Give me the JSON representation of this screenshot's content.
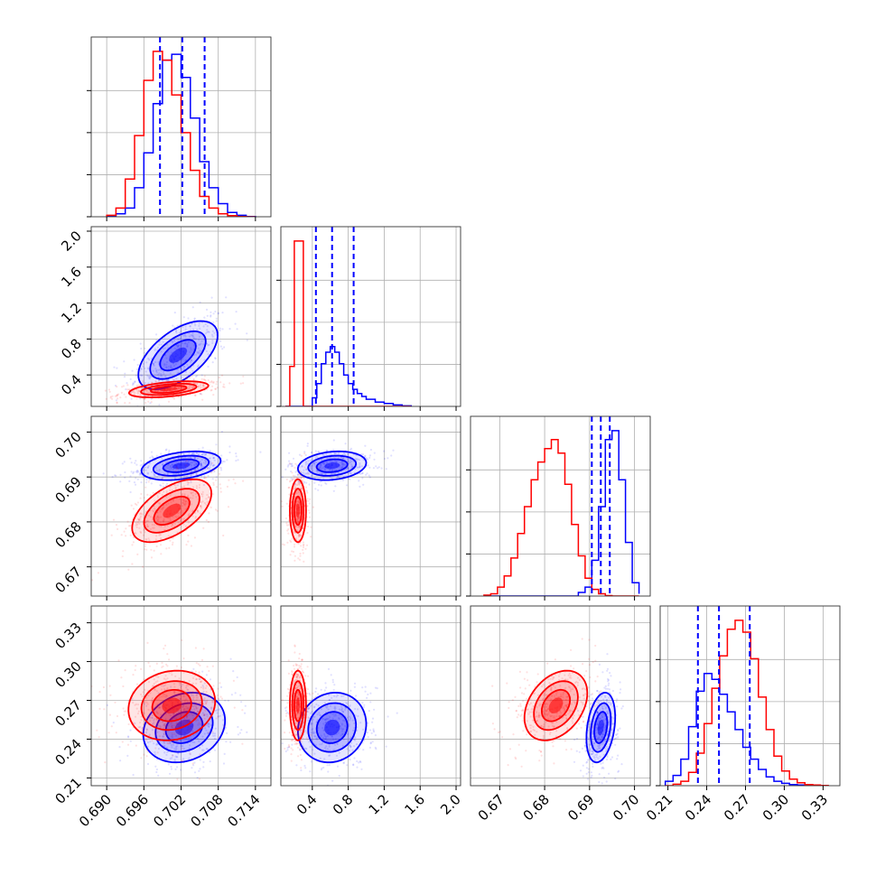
{
  "chart_data": {
    "type": "corner",
    "title": "",
    "grid": true,
    "colors": {
      "blue": "#0000ff",
      "red": "#ff0000",
      "grid": "#b0b0b0"
    },
    "parameters": [
      {
        "range": [
          0.6875,
          0.7165
        ],
        "ticks": [
          "0.690",
          "0.696",
          "0.702",
          "0.708",
          "0.714"
        ]
      },
      {
        "range": [
          0.05,
          2.05
        ],
        "ticks": [
          "0.4",
          "0.8",
          "1.2",
          "1.6",
          "2.0"
        ]
      },
      {
        "range": [
          0.6635,
          0.7035
        ],
        "ticks": [
          "0.67",
          "0.68",
          "0.69",
          "0.70"
        ]
      },
      {
        "range": [
          0.204,
          0.343
        ],
        "ticks": [
          "0.21",
          "0.24",
          "0.27",
          "0.30",
          "0.33"
        ]
      }
    ],
    "marginals": [
      {
        "bins": [
          0.69,
          0.6915,
          0.693,
          0.6945,
          0.696,
          0.6975,
          0.699,
          0.7005,
          0.702,
          0.7035,
          0.705,
          0.7065,
          0.708,
          0.7095,
          0.711,
          0.7125,
          0.714
        ],
        "series": [
          {
            "name": "",
            "color": "#0000ff",
            "counts": [
              0.02,
              0.1,
              0.3,
              1.0,
              2.2,
              3.9,
              5.4,
              5.6,
              4.8,
              3.4,
              1.9,
              1.0,
              0.45,
              0.15,
              0.05,
              0.01
            ]
          },
          {
            "name": "",
            "color": "#ff0000",
            "counts": [
              0.05,
              0.3,
              1.3,
              2.8,
              4.7,
              5.7,
              5.4,
              4.2,
              2.9,
              1.6,
              0.7,
              0.3,
              0.1,
              0.04,
              0.01,
              0.0
            ]
          }
        ],
        "quantiles": [
          0.6986,
          0.7022,
          0.7058
        ]
      },
      {
        "bins": [
          0.1,
          0.15,
          0.2,
          0.25,
          0.3,
          0.35,
          0.4,
          0.45,
          0.5,
          0.55,
          0.6,
          0.65,
          0.7,
          0.75,
          0.8,
          0.85,
          0.9,
          0.95,
          1.0,
          1.1,
          1.2,
          1.3,
          1.4,
          1.5
        ],
        "series": [
          {
            "name": "",
            "color": "#0000ff",
            "counts": [
              0.0,
              0.0,
              0.0,
              0.0,
              0.0,
              0.0,
              0.3,
              0.8,
              1.5,
              1.9,
              2.1,
              1.9,
              1.5,
              1.1,
              0.8,
              0.6,
              0.45,
              0.35,
              0.25,
              0.15,
              0.1,
              0.05,
              0.02
            ]
          },
          {
            "name": "",
            "color": "#ff0000",
            "counts": [
              0.0,
              1.4,
              5.8,
              5.8,
              0.0,
              0.0,
              0.0,
              0.0,
              0.0,
              0.0,
              0.0,
              0.0,
              0.0,
              0.0,
              0.0,
              0.0,
              0.0,
              0.0,
              0.0,
              0.0,
              0.0,
              0.0,
              0.0
            ]
          }
        ],
        "quantiles": [
          0.44,
          0.62,
          0.86
        ]
      },
      {
        "bins": [
          0.6665,
          0.668,
          0.6695,
          0.671,
          0.6725,
          0.674,
          0.6755,
          0.677,
          0.6785,
          0.68,
          0.6815,
          0.683,
          0.6845,
          0.686,
          0.6875,
          0.689,
          0.6905,
          0.692,
          0.6935,
          0.695,
          0.6965,
          0.698,
          0.6995,
          0.701
        ],
        "series": [
          {
            "name": "",
            "color": "#0000ff",
            "counts": [
              0,
              0,
              0,
              0,
              0,
              0,
              0,
              0,
              0,
              0,
              0,
              0,
              0,
              0,
              0.08,
              0.2,
              0.8,
              2.0,
              3.5,
              3.7,
              2.6,
              1.2,
              0.3,
              0.05
            ]
          },
          {
            "name": "",
            "color": "#ff0000",
            "counts": [
              0.02,
              0.05,
              0.2,
              0.45,
              0.85,
              1.4,
              2.0,
              2.6,
              3.0,
              3.3,
              3.5,
              3.2,
              2.5,
              1.6,
              0.9,
              0.4,
              0.15,
              0.05,
              0.01,
              0,
              0,
              0,
              0,
              0
            ]
          }
        ],
        "quantiles": [
          0.6905,
          0.6925,
          0.6945
        ]
      },
      {
        "bins": [
          0.208,
          0.214,
          0.22,
          0.226,
          0.232,
          0.238,
          0.244,
          0.25,
          0.256,
          0.262,
          0.268,
          0.274,
          0.28,
          0.286,
          0.292,
          0.298,
          0.304,
          0.31,
          0.316,
          0.322,
          0.328,
          0.334
        ],
        "series": [
          {
            "name": "",
            "color": "#0000ff",
            "counts": [
              0.15,
              0.35,
              0.9,
              2.0,
              3.2,
              3.8,
              3.6,
              3.1,
              2.5,
              1.9,
              1.3,
              0.9,
              0.55,
              0.3,
              0.15,
              0.08,
              0.04,
              0.02,
              0.01,
              0,
              0
            ]
          },
          {
            "name": "",
            "color": "#ff0000",
            "counts": [
              0,
              0.05,
              0.15,
              0.45,
              1.1,
              2.1,
              3.3,
              4.4,
              5.3,
              5.6,
              5.2,
              4.3,
              3.0,
              1.9,
              1.0,
              0.5,
              0.22,
              0.1,
              0.04,
              0.02,
              0.01
            ]
          }
        ],
        "quantiles": [
          0.2332,
          0.2495,
          0.2733
        ]
      }
    ],
    "pairs": [
      {
        "x_param": 0,
        "y_param": 1,
        "blue": {
          "mean": [
            0.7015,
            0.62
          ],
          "sd": [
            0.0032,
            0.19
          ],
          "rho": 0.58
        },
        "red": {
          "mean": [
            0.7,
            0.24
          ],
          "sd": [
            0.0032,
            0.045
          ],
          "rho": 0.45
        }
      },
      {
        "x_param": 0,
        "y_param": 2,
        "blue": {
          "mean": [
            0.702,
            0.6925
          ],
          "sd": [
            0.0032,
            0.0016
          ],
          "rho": 0.35
        },
        "red": {
          "mean": [
            0.7005,
            0.6825
          ],
          "sd": [
            0.0032,
            0.0035
          ],
          "rho": 0.55
        }
      },
      {
        "x_param": 1,
        "y_param": 2,
        "blue": {
          "mean": [
            0.62,
            0.6925
          ],
          "sd": [
            0.19,
            0.0016
          ],
          "rho": 0.2
        },
        "red": {
          "mean": [
            0.24,
            0.6825
          ],
          "sd": [
            0.045,
            0.0035
          ],
          "rho": 0.0
        }
      },
      {
        "x_param": 0,
        "y_param": 3,
        "blue": {
          "mean": [
            0.7025,
            0.249
          ],
          "sd": [
            0.0033,
            0.0135
          ],
          "rho": 0.2
        },
        "red": {
          "mean": [
            0.7005,
            0.266
          ],
          "sd": [
            0.0035,
            0.0135
          ],
          "rho": 0.12
        }
      },
      {
        "x_param": 1,
        "y_param": 3,
        "blue": {
          "mean": [
            0.62,
            0.249
          ],
          "sd": [
            0.19,
            0.0135
          ],
          "rho": 0.1
        },
        "red": {
          "mean": [
            0.24,
            0.266
          ],
          "sd": [
            0.045,
            0.0135
          ],
          "rho": 0.0
        }
      },
      {
        "x_param": 2,
        "y_param": 3,
        "blue": {
          "mean": [
            0.6925,
            0.249
          ],
          "sd": [
            0.0016,
            0.0135
          ],
          "rho": 0.3
        },
        "red": {
          "mean": [
            0.6825,
            0.266
          ],
          "sd": [
            0.0035,
            0.0135
          ],
          "rho": 0.35
        }
      }
    ]
  }
}
